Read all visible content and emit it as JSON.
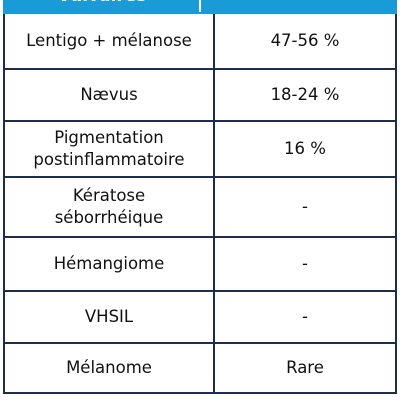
{
  "table": {
    "header": [
      "Vulvaires"
    ],
    "rows": [
      [
        "Lentigo + mélanose",
        "47-56 %"
      ],
      [
        "Nævus",
        "18-24 %"
      ],
      [
        "Pigmentation postinflammatoire",
        "16 %"
      ],
      [
        "Kératose séborrhéique",
        "-"
      ],
      [
        "Hémangiome",
        "-"
      ],
      [
        "VHSIL",
        "-"
      ],
      [
        "Mélanome",
        "Rare"
      ]
    ]
  }
}
